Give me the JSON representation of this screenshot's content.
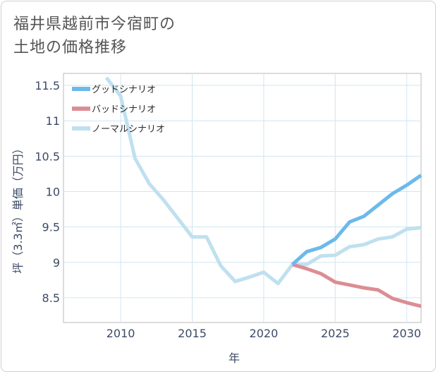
{
  "title_lines": [
    "福井県越前市今宿町の",
    "土地の価格推移"
  ],
  "chart_data": {
    "type": "line",
    "title": "福井県越前市今宿町の土地の価格推移",
    "xlabel": "年",
    "ylabel": "坪（3.3㎡）単価（万円）",
    "xlim": [
      2006,
      2031
    ],
    "ylim": [
      8.15,
      11.67
    ],
    "x_ticks": [
      2010,
      2015,
      2020,
      2025,
      2030
    ],
    "y_ticks": [
      8.5,
      9,
      9.5,
      10,
      10.5,
      11,
      11.5
    ],
    "grid": true,
    "legend_position": "top-left",
    "series": [
      {
        "name": "グッドシナリオ",
        "color": "#6cb9ec",
        "x": [
          2022,
          2023,
          2024,
          2025,
          2026,
          2027,
          2028,
          2029,
          2030,
          2031
        ],
        "values": [
          8.97,
          9.15,
          9.21,
          9.33,
          9.57,
          9.65,
          9.81,
          9.97,
          10.09,
          10.23
        ]
      },
      {
        "name": "バッドシナリオ",
        "color": "#dc8d94",
        "x": [
          2022,
          2023,
          2024,
          2025,
          2026,
          2027,
          2028,
          2029,
          2030,
          2031
        ],
        "values": [
          8.97,
          8.91,
          8.84,
          8.72,
          8.68,
          8.64,
          8.61,
          8.49,
          8.43,
          8.38
        ]
      },
      {
        "name": "ノーマルシナリオ",
        "color": "#bfe0ef",
        "x": [
          2009,
          2010,
          2011,
          2012,
          2013,
          2014,
          2015,
          2016,
          2017,
          2018,
          2019,
          2020,
          2021,
          2022,
          2023,
          2024,
          2025,
          2026,
          2027,
          2028,
          2029,
          2030,
          2031
        ],
        "values": [
          11.61,
          11.35,
          10.47,
          10.11,
          9.88,
          9.62,
          9.36,
          9.36,
          8.95,
          8.73,
          8.79,
          8.86,
          8.7,
          8.97,
          8.97,
          9.09,
          9.1,
          9.22,
          9.25,
          9.33,
          9.36,
          9.47,
          9.49
        ]
      }
    ]
  }
}
